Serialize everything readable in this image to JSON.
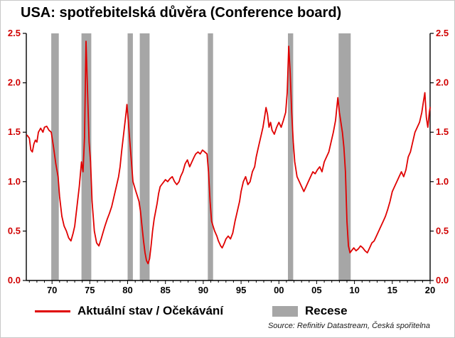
{
  "title": "USA: spotřebitelská důvěra (Conference board)",
  "legend": {
    "series_label": "Aktuální stav / Očekávání",
    "recession_label": "Recese"
  },
  "source": "Source: Refinitiv Datastream, Česká spořitelna",
  "chart_data": {
    "type": "line",
    "title": "USA: spotřebitelská důvěra (Conference board)",
    "xlabel": "",
    "ylabel": "",
    "x_range": [
      1966.6,
      2020
    ],
    "y_range": [
      0,
      2.5
    ],
    "x_ticks": [
      {
        "v": 1970,
        "label": "70"
      },
      {
        "v": 1975,
        "label": "75"
      },
      {
        "v": 1980,
        "label": "80"
      },
      {
        "v": 1985,
        "label": "85"
      },
      {
        "v": 1990,
        "label": "90"
      },
      {
        "v": 1995,
        "label": "95"
      },
      {
        "v": 2000,
        "label": "00"
      },
      {
        "v": 2005,
        "label": "05"
      },
      {
        "v": 2010,
        "label": "10"
      },
      {
        "v": 2015,
        "label": "15"
      },
      {
        "v": 2020,
        "label": "20"
      }
    ],
    "y_ticks": [
      {
        "v": 0.0,
        "label": "0.0"
      },
      {
        "v": 0.5,
        "label": "0.5"
      },
      {
        "v": 1.0,
        "label": "1.0"
      },
      {
        "v": 1.5,
        "label": "1.5"
      },
      {
        "v": 2.0,
        "label": "2.0"
      },
      {
        "v": 2.5,
        "label": "2.5"
      }
    ],
    "line_color": "#e00000",
    "recession_color": "#a6a6a6",
    "y_tick_label_color": "#d00000",
    "x_tick_label_color": "#000000",
    "grid": false,
    "legend_position": "bottom",
    "recessions": [
      [
        1969.9,
        1970.9
      ],
      [
        1973.9,
        1975.2
      ],
      [
        1980.0,
        1980.7
      ],
      [
        1981.6,
        1982.9
      ],
      [
        1990.6,
        1991.3
      ],
      [
        2001.2,
        2001.9
      ],
      [
        2007.9,
        2009.5
      ]
    ],
    "series": [
      {
        "name": "Aktuální stav / Očekávání",
        "points": [
          [
            1966.7,
            1.47
          ],
          [
            1967.0,
            1.44
          ],
          [
            1967.2,
            1.32
          ],
          [
            1967.4,
            1.3
          ],
          [
            1967.6,
            1.38
          ],
          [
            1967.8,
            1.42
          ],
          [
            1968.0,
            1.4
          ],
          [
            1968.2,
            1.5
          ],
          [
            1968.5,
            1.54
          ],
          [
            1968.8,
            1.5
          ],
          [
            1969.0,
            1.55
          ],
          [
            1969.3,
            1.56
          ],
          [
            1969.6,
            1.52
          ],
          [
            1969.9,
            1.5
          ],
          [
            1970.2,
            1.35
          ],
          [
            1970.5,
            1.18
          ],
          [
            1970.8,
            1.05
          ],
          [
            1971.0,
            0.85
          ],
          [
            1971.3,
            0.65
          ],
          [
            1971.6,
            0.55
          ],
          [
            1971.9,
            0.5
          ],
          [
            1972.2,
            0.43
          ],
          [
            1972.5,
            0.4
          ],
          [
            1972.8,
            0.48
          ],
          [
            1973.0,
            0.55
          ],
          [
            1973.3,
            0.75
          ],
          [
            1973.6,
            0.95
          ],
          [
            1973.9,
            1.2
          ],
          [
            1974.1,
            1.1
          ],
          [
            1974.3,
            1.45
          ],
          [
            1974.5,
            2.42
          ],
          [
            1974.7,
            1.9
          ],
          [
            1974.9,
            1.4
          ],
          [
            1975.1,
            1.2
          ],
          [
            1975.3,
            0.8
          ],
          [
            1975.6,
            0.5
          ],
          [
            1975.9,
            0.38
          ],
          [
            1976.2,
            0.35
          ],
          [
            1976.5,
            0.42
          ],
          [
            1976.8,
            0.5
          ],
          [
            1977.0,
            0.55
          ],
          [
            1977.3,
            0.62
          ],
          [
            1977.6,
            0.68
          ],
          [
            1977.9,
            0.75
          ],
          [
            1978.2,
            0.85
          ],
          [
            1978.5,
            0.95
          ],
          [
            1978.8,
            1.05
          ],
          [
            1979.0,
            1.15
          ],
          [
            1979.2,
            1.3
          ],
          [
            1979.5,
            1.5
          ],
          [
            1979.8,
            1.7
          ],
          [
            1979.9,
            1.78
          ],
          [
            1980.1,
            1.6
          ],
          [
            1980.3,
            1.4
          ],
          [
            1980.5,
            1.2
          ],
          [
            1980.7,
            1.0
          ],
          [
            1980.9,
            0.95
          ],
          [
            1981.1,
            0.9
          ],
          [
            1981.3,
            0.85
          ],
          [
            1981.5,
            0.8
          ],
          [
            1981.7,
            0.7
          ],
          [
            1981.9,
            0.55
          ],
          [
            1982.1,
            0.4
          ],
          [
            1982.3,
            0.28
          ],
          [
            1982.5,
            0.2
          ],
          [
            1982.7,
            0.17
          ],
          [
            1982.9,
            0.22
          ],
          [
            1983.1,
            0.35
          ],
          [
            1983.3,
            0.5
          ],
          [
            1983.5,
            0.62
          ],
          [
            1983.7,
            0.7
          ],
          [
            1983.9,
            0.78
          ],
          [
            1984.1,
            0.88
          ],
          [
            1984.3,
            0.95
          ],
          [
            1984.5,
            0.97
          ],
          [
            1984.8,
            1.0
          ],
          [
            1985.0,
            1.02
          ],
          [
            1985.3,
            1.0
          ],
          [
            1985.6,
            1.03
          ],
          [
            1985.9,
            1.05
          ],
          [
            1986.2,
            1.0
          ],
          [
            1986.5,
            0.97
          ],
          [
            1986.8,
            1.0
          ],
          [
            1987.0,
            1.05
          ],
          [
            1987.3,
            1.1
          ],
          [
            1987.6,
            1.18
          ],
          [
            1987.9,
            1.22
          ],
          [
            1988.2,
            1.15
          ],
          [
            1988.5,
            1.2
          ],
          [
            1988.8,
            1.25
          ],
          [
            1989.0,
            1.28
          ],
          [
            1989.3,
            1.3
          ],
          [
            1989.6,
            1.28
          ],
          [
            1989.9,
            1.32
          ],
          [
            1990.2,
            1.3
          ],
          [
            1990.5,
            1.28
          ],
          [
            1990.7,
            1.1
          ],
          [
            1990.9,
            0.8
          ],
          [
            1991.1,
            0.6
          ],
          [
            1991.3,
            0.55
          ],
          [
            1991.5,
            0.5
          ],
          [
            1991.8,
            0.45
          ],
          [
            1992.0,
            0.4
          ],
          [
            1992.3,
            0.35
          ],
          [
            1992.5,
            0.33
          ],
          [
            1992.8,
            0.38
          ],
          [
            1993.0,
            0.42
          ],
          [
            1993.3,
            0.45
          ],
          [
            1993.6,
            0.42
          ],
          [
            1993.9,
            0.48
          ],
          [
            1994.2,
            0.6
          ],
          [
            1994.5,
            0.7
          ],
          [
            1994.8,
            0.8
          ],
          [
            1995.0,
            0.9
          ],
          [
            1995.3,
            1.0
          ],
          [
            1995.6,
            1.05
          ],
          [
            1995.9,
            0.97
          ],
          [
            1996.2,
            1.0
          ],
          [
            1996.5,
            1.1
          ],
          [
            1996.8,
            1.15
          ],
          [
            1997.0,
            1.25
          ],
          [
            1997.3,
            1.35
          ],
          [
            1997.6,
            1.45
          ],
          [
            1997.9,
            1.55
          ],
          [
            1998.1,
            1.65
          ],
          [
            1998.3,
            1.75
          ],
          [
            1998.5,
            1.68
          ],
          [
            1998.7,
            1.55
          ],
          [
            1998.9,
            1.6
          ],
          [
            1999.1,
            1.52
          ],
          [
            1999.4,
            1.48
          ],
          [
            1999.7,
            1.55
          ],
          [
            2000.0,
            1.6
          ],
          [
            2000.3,
            1.55
          ],
          [
            2000.6,
            1.62
          ],
          [
            2000.9,
            1.7
          ],
          [
            2001.1,
            1.9
          ],
          [
            2001.3,
            2.37
          ],
          [
            2001.5,
            2.1
          ],
          [
            2001.7,
            1.7
          ],
          [
            2001.9,
            1.4
          ],
          [
            2002.1,
            1.2
          ],
          [
            2002.4,
            1.05
          ],
          [
            2002.7,
            1.0
          ],
          [
            2003.0,
            0.95
          ],
          [
            2003.3,
            0.9
          ],
          [
            2003.6,
            0.95
          ],
          [
            2003.9,
            1.0
          ],
          [
            2004.2,
            1.05
          ],
          [
            2004.5,
            1.1
          ],
          [
            2004.8,
            1.08
          ],
          [
            2005.1,
            1.12
          ],
          [
            2005.4,
            1.15
          ],
          [
            2005.7,
            1.1
          ],
          [
            2006.0,
            1.2
          ],
          [
            2006.3,
            1.25
          ],
          [
            2006.6,
            1.3
          ],
          [
            2006.9,
            1.4
          ],
          [
            2007.2,
            1.5
          ],
          [
            2007.5,
            1.62
          ],
          [
            2007.8,
            1.85
          ],
          [
            2008.0,
            1.7
          ],
          [
            2008.2,
            1.6
          ],
          [
            2008.4,
            1.5
          ],
          [
            2008.6,
            1.35
          ],
          [
            2008.8,
            1.1
          ],
          [
            2009.0,
            0.6
          ],
          [
            2009.2,
            0.35
          ],
          [
            2009.4,
            0.28
          ],
          [
            2009.6,
            0.3
          ],
          [
            2009.9,
            0.33
          ],
          [
            2010.2,
            0.3
          ],
          [
            2010.5,
            0.32
          ],
          [
            2010.8,
            0.35
          ],
          [
            2011.1,
            0.33
          ],
          [
            2011.4,
            0.3
          ],
          [
            2011.7,
            0.28
          ],
          [
            2012.0,
            0.33
          ],
          [
            2012.3,
            0.38
          ],
          [
            2012.6,
            0.4
          ],
          [
            2012.9,
            0.45
          ],
          [
            2013.2,
            0.5
          ],
          [
            2013.5,
            0.55
          ],
          [
            2013.8,
            0.6
          ],
          [
            2014.1,
            0.65
          ],
          [
            2014.4,
            0.72
          ],
          [
            2014.7,
            0.8
          ],
          [
            2015.0,
            0.9
          ],
          [
            2015.3,
            0.95
          ],
          [
            2015.6,
            1.0
          ],
          [
            2015.9,
            1.05
          ],
          [
            2016.2,
            1.1
          ],
          [
            2016.5,
            1.05
          ],
          [
            2016.8,
            1.12
          ],
          [
            2017.1,
            1.25
          ],
          [
            2017.4,
            1.3
          ],
          [
            2017.7,
            1.4
          ],
          [
            2018.0,
            1.5
          ],
          [
            2018.3,
            1.55
          ],
          [
            2018.6,
            1.6
          ],
          [
            2018.9,
            1.7
          ],
          [
            2019.1,
            1.8
          ],
          [
            2019.3,
            1.9
          ],
          [
            2019.5,
            1.65
          ],
          [
            2019.7,
            1.55
          ],
          [
            2019.9,
            1.7
          ],
          [
            2020.0,
            1.75
          ]
        ]
      }
    ]
  }
}
